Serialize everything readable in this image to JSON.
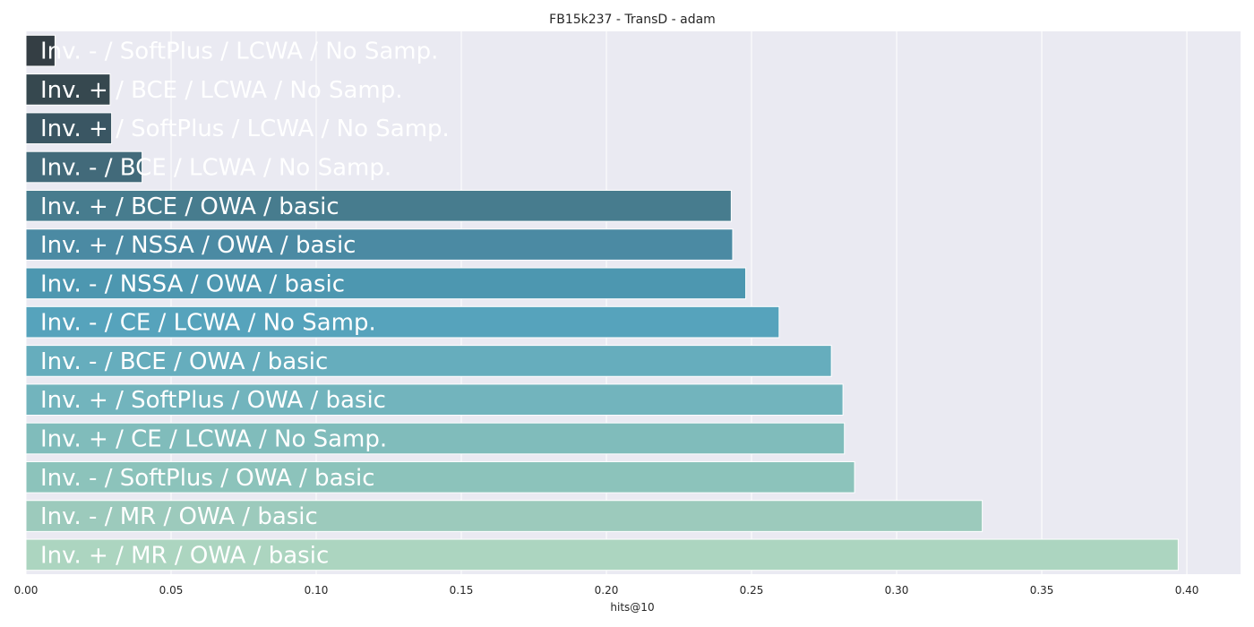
{
  "chart_data": {
    "type": "bar",
    "orientation": "horizontal",
    "title": "FB15k237 - TransD - adam",
    "xlabel": "hits@10",
    "ylabel": "",
    "xlim": [
      0,
      0.4185
    ],
    "xticks": [
      "0.00",
      "0.05",
      "0.10",
      "0.15",
      "0.20",
      "0.25",
      "0.30",
      "0.35",
      "0.40"
    ],
    "grid": true,
    "background": "#eaeaf2",
    "categories": [
      "Inv. - / SoftPlus / LCWA / No Samp.",
      "Inv. + / BCE / LCWA / No Samp.",
      "Inv. + / SoftPlus / LCWA / No Samp.",
      "Inv. - / BCE / LCWA / No Samp.",
      "Inv. + / BCE / OWA / basic",
      "Inv. + / NSSA / OWA / basic",
      "Inv. - / NSSA / OWA / basic",
      "Inv. - / CE / LCWA / No Samp.",
      "Inv. - / BCE / OWA / basic",
      "Inv. + / SoftPlus / OWA / basic",
      "Inv. + / CE / LCWA / No Samp.",
      "Inv. - / SoftPlus / OWA / basic",
      "Inv. - / MR / OWA / basic",
      "Inv. + / MR / OWA / basic"
    ],
    "values": [
      0.01,
      0.029,
      0.0295,
      0.04,
      0.243,
      0.2435,
      0.248,
      0.2595,
      0.2775,
      0.2815,
      0.282,
      0.2855,
      0.3295,
      0.397
    ],
    "colors": [
      "#343e44",
      "#36484f",
      "#3a5663",
      "#426a7a",
      "#477c8e",
      "#4b8aa3",
      "#4d97b0",
      "#56a3bc",
      "#66adbd",
      "#72b4bd",
      "#80bcbb",
      "#8cc3bb",
      "#9ccabc",
      "#acd5c0"
    ]
  }
}
